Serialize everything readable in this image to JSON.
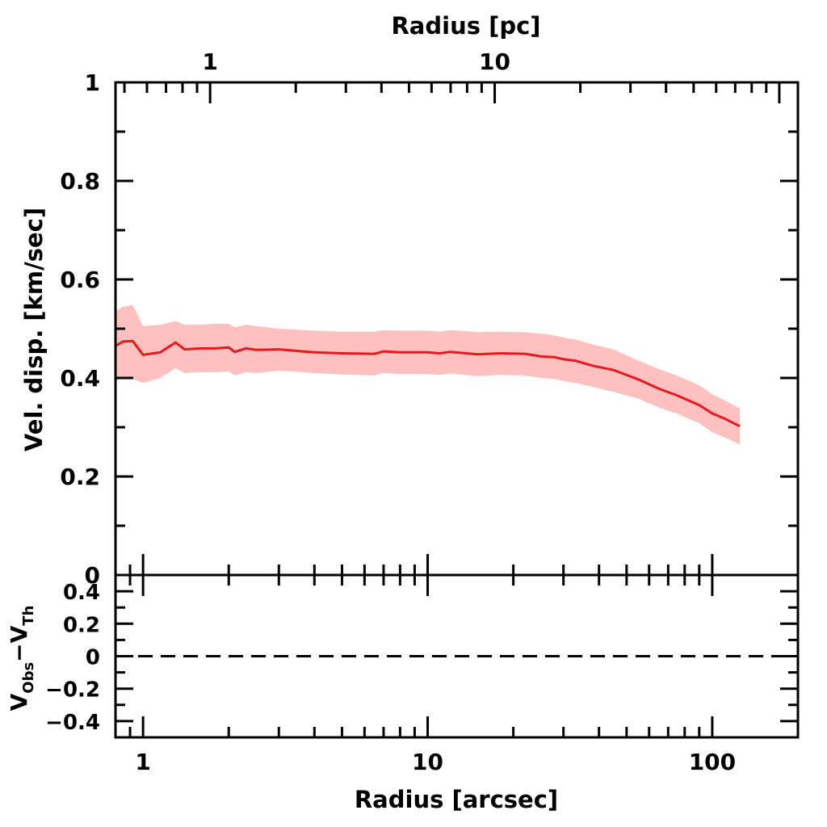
{
  "chart_data": [
    {
      "panel": "main",
      "type": "area",
      "x_scale": "log",
      "xlim": [
        0.8,
        200
      ],
      "ylim": [
        0,
        1
      ],
      "xlabel": "Radius [arcsec]",
      "ylabel": "Vel. disp. [km/sec]",
      "top_xlabel": "Radius [pc]",
      "top_xticks": [
        1,
        10
      ],
      "top_xtick_labels": [
        "1",
        "10"
      ],
      "top_xticks_arcsec": [
        1.72,
        17.2
      ],
      "yticks": [
        0,
        0.2,
        0.4,
        0.6,
        0.8,
        1
      ],
      "ytick_labels": [
        "0",
        "0.2",
        "0.4",
        "0.6",
        "0.8",
        "1"
      ],
      "grid": false,
      "colors": {
        "line": "#e8191c",
        "band": "#ffc0c0"
      },
      "series": [
        {
          "x": [
            0.8,
            0.85,
            0.92,
            1.0,
            1.15,
            1.3,
            1.4,
            1.6,
            1.8,
            2.0,
            2.1,
            2.3,
            2.5,
            3.0,
            4.0,
            5.0,
            6.5,
            7.0,
            8.0,
            9.0,
            10.0,
            11.0,
            12.0,
            15.0,
            18.0,
            22.0,
            25.0,
            28.0,
            30.0,
            33.0,
            38.0,
            45.0,
            55.0,
            65.0,
            75.0,
            90.0,
            100.0,
            110.0,
            125.0
          ],
          "y": [
            0.465,
            0.474,
            0.475,
            0.447,
            0.452,
            0.472,
            0.458,
            0.46,
            0.46,
            0.462,
            0.453,
            0.46,
            0.457,
            0.458,
            0.452,
            0.45,
            0.449,
            0.454,
            0.452,
            0.452,
            0.452,
            0.45,
            0.453,
            0.448,
            0.45,
            0.449,
            0.444,
            0.442,
            0.438,
            0.435,
            0.425,
            0.416,
            0.397,
            0.378,
            0.365,
            0.345,
            0.328,
            0.318,
            0.302
          ],
          "y_upper": [
            0.535,
            0.545,
            0.548,
            0.505,
            0.508,
            0.515,
            0.508,
            0.508,
            0.51,
            0.51,
            0.503,
            0.508,
            0.505,
            0.5,
            0.496,
            0.494,
            0.494,
            0.497,
            0.496,
            0.496,
            0.496,
            0.494,
            0.497,
            0.493,
            0.494,
            0.493,
            0.49,
            0.486,
            0.482,
            0.478,
            0.468,
            0.458,
            0.435,
            0.418,
            0.405,
            0.385,
            0.367,
            0.355,
            0.338
          ],
          "y_lower": [
            0.395,
            0.4,
            0.398,
            0.39,
            0.4,
            0.42,
            0.41,
            0.412,
            0.412,
            0.413,
            0.405,
            0.412,
            0.41,
            0.415,
            0.41,
            0.407,
            0.405,
            0.41,
            0.408,
            0.408,
            0.408,
            0.406,
            0.409,
            0.404,
            0.406,
            0.405,
            0.4,
            0.398,
            0.394,
            0.39,
            0.382,
            0.372,
            0.358,
            0.34,
            0.328,
            0.308,
            0.29,
            0.28,
            0.265
          ]
        }
      ]
    },
    {
      "panel": "residual",
      "type": "line",
      "x_scale": "log",
      "xlim": [
        0.8,
        200
      ],
      "ylim": [
        -0.5,
        0.5
      ],
      "xlabel": "Radius [arcsec]",
      "ylabel": "Vₒᵦₛ−Vₜₕ",
      "ylabel_parts": {
        "v1": "V",
        "sub1": "Obs",
        "minus": "−",
        "v2": "V",
        "sub2": "Th"
      },
      "xticks": [
        1,
        10,
        100
      ],
      "xtick_labels": [
        "1",
        "10",
        "100"
      ],
      "yticks": [
        0.4,
        0.2,
        0,
        -0.2,
        -0.4
      ],
      "ytick_labels": [
        "0.4",
        "0.2",
        "0",
        "−0.2",
        "−0.4"
      ],
      "reference_line": {
        "y": 0,
        "style": "dashed"
      },
      "grid": false
    }
  ]
}
